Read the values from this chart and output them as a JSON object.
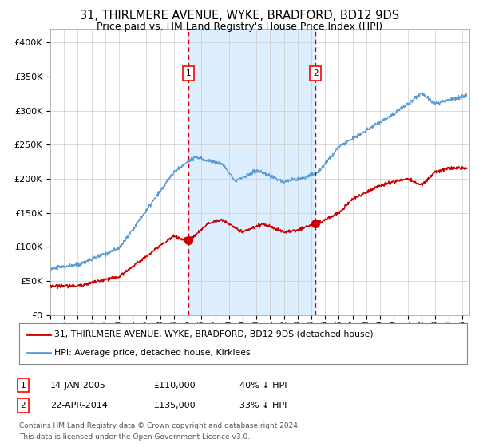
{
  "title1": "31, THIRLMERE AVENUE, WYKE, BRADFORD, BD12 9DS",
  "title2": "Price paid vs. HM Land Registry's House Price Index (HPI)",
  "ylabel_ticks": [
    "£0",
    "£50K",
    "£100K",
    "£150K",
    "£200K",
    "£250K",
    "£300K",
    "£350K",
    "£400K"
  ],
  "ytick_vals": [
    0,
    50000,
    100000,
    150000,
    200000,
    250000,
    300000,
    350000,
    400000
  ],
  "xlim_start": 1995.0,
  "xlim_end": 2025.5,
  "ylim": [
    0,
    420000
  ],
  "hpi_line_color": "#5b9bd5",
  "price_color": "#cc0000",
  "marker_color": "#cc0000",
  "vline_color": "#cc0000",
  "shade_color": "#ddeeff",
  "point1_x": 2005.04,
  "point1_y": 110000,
  "point2_x": 2014.31,
  "point2_y": 135000,
  "legend_line1": "31, THIRLMERE AVENUE, WYKE, BRADFORD, BD12 9DS (detached house)",
  "legend_line2": "HPI: Average price, detached house, Kirklees",
  "table_row1": [
    "1",
    "14-JAN-2005",
    "£110,000",
    "40% ↓ HPI"
  ],
  "table_row2": [
    "2",
    "22-APR-2014",
    "£135,000",
    "33% ↓ HPI"
  ],
  "footnote1": "Contains HM Land Registry data © Crown copyright and database right 2024.",
  "footnote2": "This data is licensed under the Open Government Licence v3.0.",
  "bg_color": "#ffffff",
  "grid_color": "#cccccc"
}
